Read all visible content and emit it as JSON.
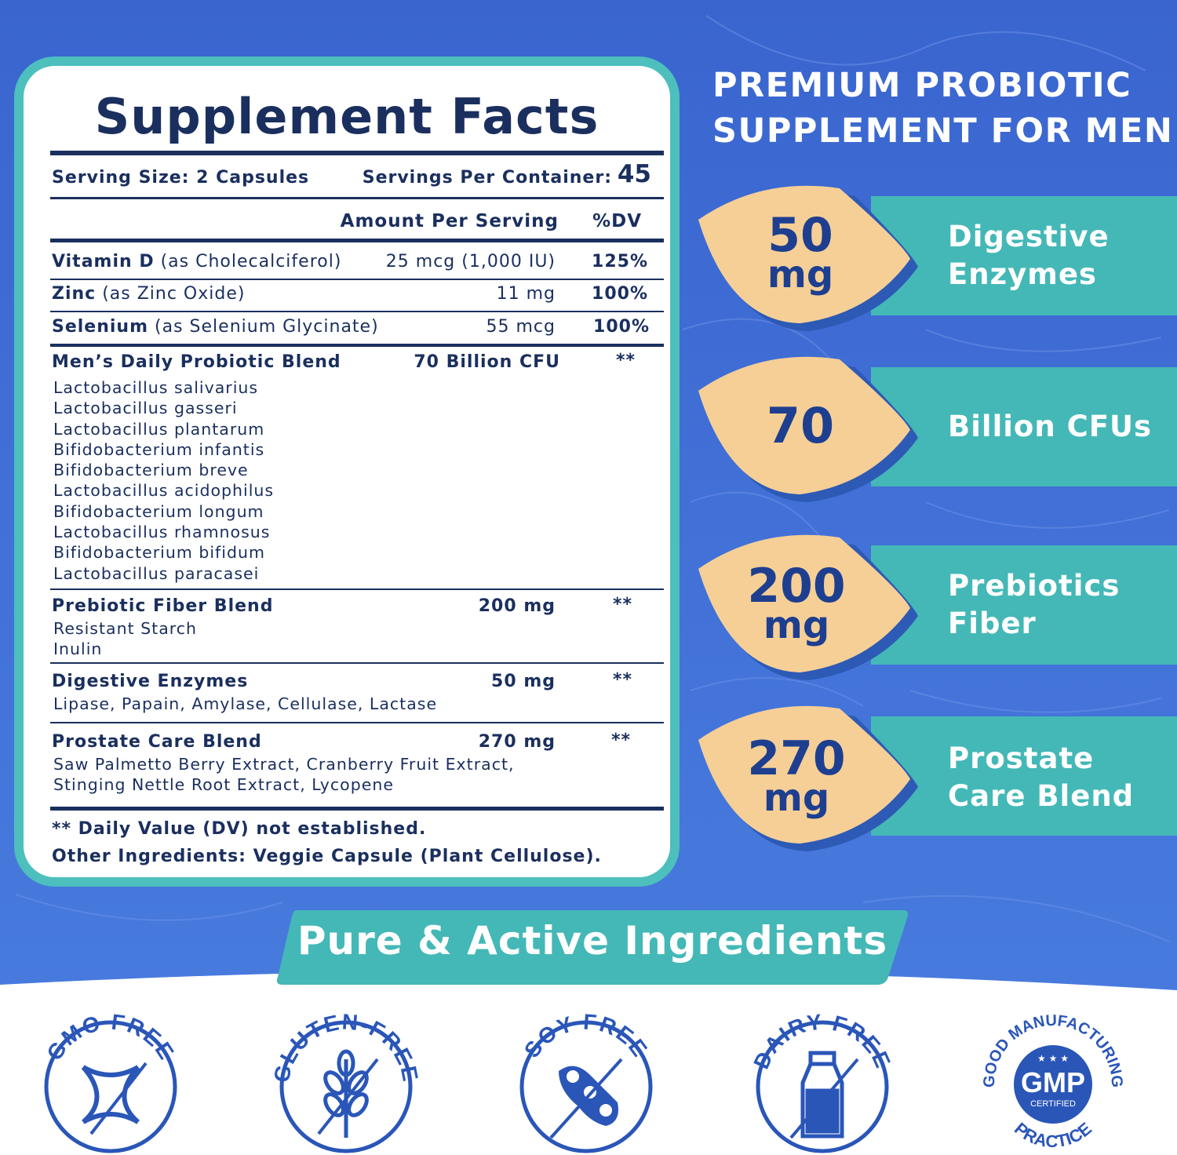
{
  "facts": {
    "title": "Supplement Facts",
    "serving_size": "Serving Size: 2 Capsules",
    "servings_per_container_label": "Servings Per Container:",
    "servings_per_container_value": "45",
    "header_amount": "Amount Per Serving",
    "header_dv": "%DV",
    "nutrients": [
      {
        "name": "Vitamin D",
        "source": " (as Cholecalciferol)",
        "amount": "25 mcg (1,000 IU)",
        "dv": "125%"
      },
      {
        "name": "Zinc",
        "source": " (as Zinc Oxide)",
        "amount": "11 mg",
        "dv": "100%"
      },
      {
        "name": "Selenium",
        "source": " (as Selenium Glycinate)",
        "amount": "55 mcg",
        "dv": "100%"
      }
    ],
    "probiotic": {
      "name": "Men’s Daily Probiotic Blend",
      "amount": "70 Billion CFU",
      "dv": "**",
      "strains": [
        "Lactobacillus salivarius",
        "Lactobacillus gasseri",
        "Lactobacillus plantarum",
        "Bifidobacterium infantis",
        "Bifidobacterium breve",
        "Lactobacillus acidophilus",
        "Bifidobacterium longum",
        "Lactobacillus rhamnosus",
        "Bifidobacterium bifidum",
        "Lactobacillus paracasei"
      ]
    },
    "prebiotic": {
      "name": "Prebiotic Fiber Blend",
      "amount": "200 mg",
      "dv": "**",
      "items": [
        "Resistant Starch",
        "Inulin"
      ]
    },
    "enzymes": {
      "name": "Digestive Enzymes",
      "amount": "50 mg",
      "dv": "**",
      "items": [
        "Lipase, Papain, Amylase, Cellulase, Lactase"
      ]
    },
    "prostate": {
      "name": "Prostate Care Blend",
      "amount": "270 mg",
      "dv": "**",
      "items": [
        "Saw Palmetto Berry Extract, Cranberry Fruit Extract,",
        "Stinging Nettle Root Extract, Lycopene"
      ]
    },
    "footnote": "** Daily Value (DV) not established.",
    "other_ingredients": "Other Ingredients: Veggie Capsule (Plant Cellulose)."
  },
  "headline": {
    "line1": "PREMIUM PROBIOTIC",
    "line2": "SUPPLEMENT FOR MEN"
  },
  "stats": [
    {
      "number": "50",
      "unit": "mg",
      "label_line1": "Digestive",
      "label_line2": "Enzymes"
    },
    {
      "number": "70",
      "unit": "",
      "label_line1": "Billion CFUs",
      "label_line2": ""
    },
    {
      "number": "200",
      "unit": "mg",
      "label_line1": "Prebiotics",
      "label_line2": "Fiber"
    },
    {
      "number": "270",
      "unit": "mg",
      "label_line1": "Prostate",
      "label_line2": "Care Blend"
    }
  ],
  "banner": "Pure & Active Ingredients",
  "badges": [
    {
      "text": "GMO FREE",
      "icon": "dna-icon"
    },
    {
      "text": "GLUTEN-FREE",
      "icon": "wheat-icon"
    },
    {
      "text": "SOY FREE",
      "icon": "soybean-icon"
    },
    {
      "text": "DAIRY FREE",
      "icon": "milk-bottle-icon"
    },
    {
      "text_top": "GOOD MANUFACTURING",
      "text_bottom": "PRACTICE",
      "center": "GMP",
      "center_sub": "CERTIFIED",
      "icon": "gmp-seal-icon"
    }
  ],
  "colors": {
    "background_blue": "#3f6fd6",
    "teal": "#44b8b6",
    "navy": "#1a2f5e",
    "peach": "#f6cf96",
    "badge_blue": "#2a56b8"
  }
}
